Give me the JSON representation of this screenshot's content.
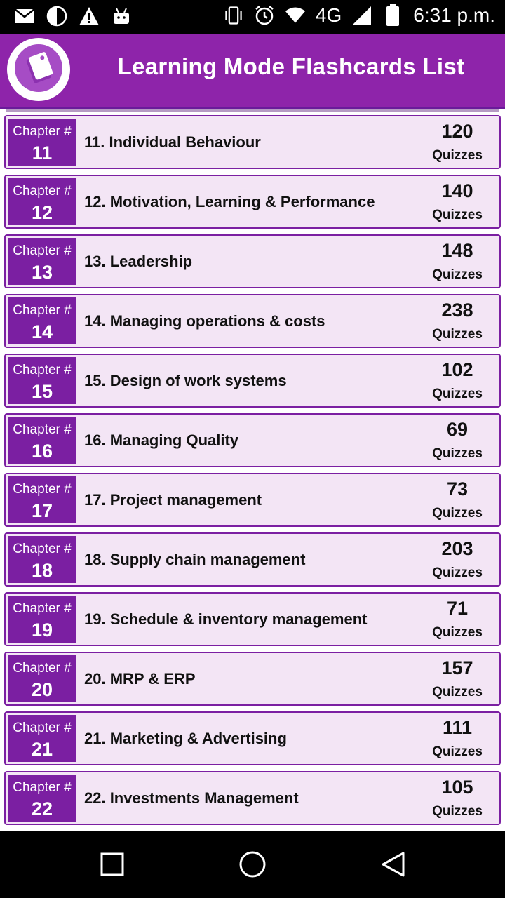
{
  "status_bar": {
    "time": "6:31 p.m.",
    "network": "4G",
    "left_icons": [
      "mail-icon",
      "moon-icon",
      "warning-icon",
      "android-icon"
    ],
    "right_icons": [
      "vibrate-icon",
      "alarm-icon",
      "wifi-icon",
      "signal-icon",
      "battery-icon"
    ]
  },
  "header": {
    "title": "Learning Mode Flashcards List",
    "logo_icon": "flashcards-icon"
  },
  "chapters": [
    {
      "label": "Chapter #",
      "number": "11",
      "title": "11. Individual Behaviour",
      "count": "120",
      "unit": "Quizzes"
    },
    {
      "label": "Chapter #",
      "number": "12",
      "title": "12. Motivation, Learning & Performance",
      "count": "140",
      "unit": "Quizzes"
    },
    {
      "label": "Chapter #",
      "number": "13",
      "title": "13. Leadership",
      "count": "148",
      "unit": "Quizzes"
    },
    {
      "label": "Chapter #",
      "number": "14",
      "title": "14. Managing operations & costs",
      "count": "238",
      "unit": "Quizzes"
    },
    {
      "label": "Chapter #",
      "number": "15",
      "title": "15. Design of work systems",
      "count": "102",
      "unit": "Quizzes"
    },
    {
      "label": "Chapter #",
      "number": "16",
      "title": "16. Managing Quality",
      "count": "69",
      "unit": "Quizzes"
    },
    {
      "label": "Chapter #",
      "number": "17",
      "title": "17. Project management",
      "count": "73",
      "unit": "Quizzes"
    },
    {
      "label": "Chapter #",
      "number": "18",
      "title": "18. Supply chain management",
      "count": "203",
      "unit": "Quizzes"
    },
    {
      "label": "Chapter #",
      "number": "19",
      "title": "19. Schedule & inventory management",
      "count": "71",
      "unit": "Quizzes"
    },
    {
      "label": "Chapter #",
      "number": "20",
      "title": "20. MRP & ERP",
      "count": "157",
      "unit": "Quizzes"
    },
    {
      "label": "Chapter #",
      "number": "21",
      "title": "21. Marketing & Advertising",
      "count": "111",
      "unit": "Quizzes"
    },
    {
      "label": "Chapter #",
      "number": "22",
      "title": "22. Investments Management",
      "count": "105",
      "unit": "Quizzes"
    }
  ],
  "nav_bar": {
    "icons": [
      "recents-square-icon",
      "home-circle-icon",
      "back-triangle-icon"
    ]
  },
  "colors": {
    "header": "#8e24aa",
    "chapter_box": "#7b1fa2",
    "row_background": "#f3e5f5",
    "row_border": "#7b1fa2"
  }
}
